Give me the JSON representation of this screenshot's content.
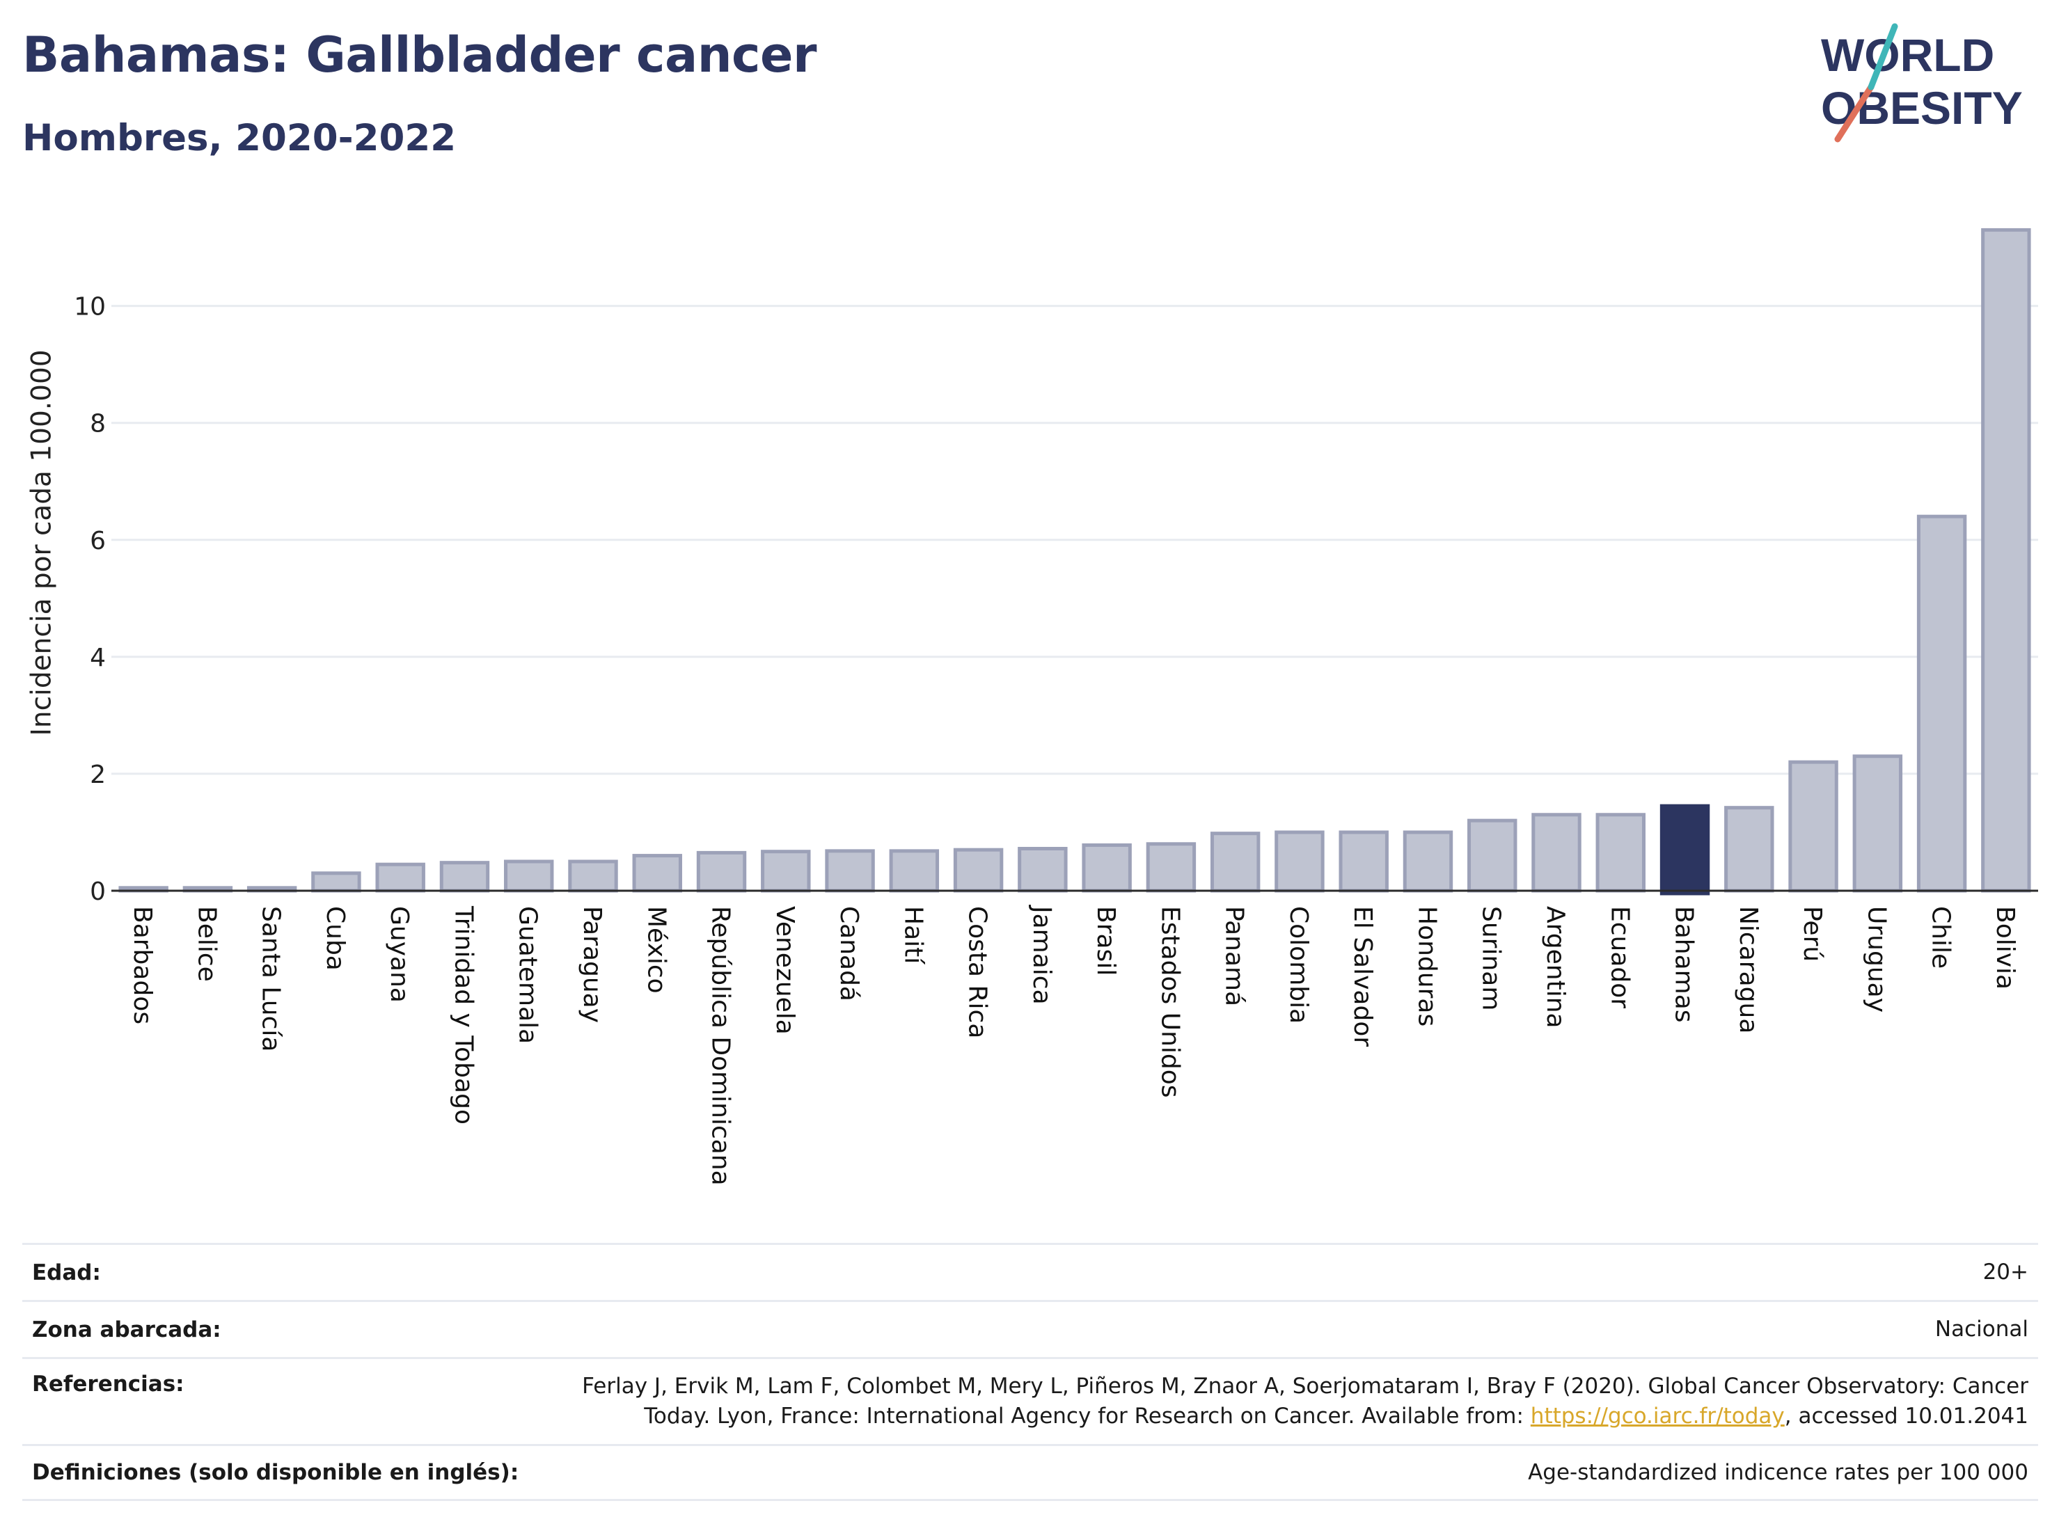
{
  "header": {
    "title": "Bahamas: Gallbladder cancer",
    "subtitle": "Hombres, 2020-2022"
  },
  "logo": {
    "line1": "WORLD",
    "line2": "OBESITY"
  },
  "colors": {
    "title": "#2c3560",
    "bar": "#bfc3d1",
    "bar_stroke": "#9ca1b8",
    "highlight": "#2c3560",
    "grid": "#e8ebf0",
    "link": "#d8a72a",
    "logo_slash_orange": "#e0705a",
    "logo_slash_teal": "#3fb6b8"
  },
  "chart_data": {
    "type": "bar",
    "ylabel": "Incidencia por cada 100.000",
    "xlabel": "",
    "ylim": [
      0,
      11.4
    ],
    "yticks": [
      0,
      2,
      4,
      6,
      8,
      10
    ],
    "grid": true,
    "highlight_category": "Bahamas",
    "categories": [
      "Barbados",
      "Belice",
      "Santa Lucía",
      "Cuba",
      "Guyana",
      "Trinidad y Tobago",
      "Guatemala",
      "Paraguay",
      "México",
      "República Dominicana",
      "Venezuela",
      "Canadá",
      "Haití",
      "Costa Rica",
      "Jamaica",
      "Brasil",
      "Estados Unidos",
      "Panamá",
      "Colombia",
      "El Salvador",
      "Honduras",
      "Surinam",
      "Argentina",
      "Ecuador",
      "Bahamas",
      "Nicaragua",
      "Perú",
      "Uruguay",
      "Chile",
      "Bolivia"
    ],
    "values": [
      0.05,
      0.05,
      0.05,
      0.3,
      0.45,
      0.48,
      0.5,
      0.5,
      0.6,
      0.65,
      0.67,
      0.68,
      0.68,
      0.7,
      0.72,
      0.78,
      0.8,
      0.98,
      1.0,
      1.0,
      1.0,
      1.2,
      1.3,
      1.3,
      1.45,
      1.42,
      2.2,
      2.3,
      6.4,
      11.3
    ]
  },
  "info": [
    {
      "label": "Edad:",
      "value": "20+"
    },
    {
      "label": "Zona abarcada:",
      "value": "Nacional"
    },
    {
      "label": "Referencias:",
      "value_line1": "Ferlay J, Ervik M, Lam F, Colombet M, Mery L, Piñeros M, Znaor A, Soerjomataram I, Bray F (2020). Global Cancer Observatory: Cancer",
      "value_line2_pre": "Today. Lyon, France: International Agency for Research on Cancer. Available from: ",
      "link": "https://gco.iarc.fr/today",
      "value_line2_post": ", accessed 10.01.2041"
    },
    {
      "label": "Definiciones (solo disponible en inglés):",
      "value": "Age-standardized indicence rates per 100 000"
    }
  ]
}
